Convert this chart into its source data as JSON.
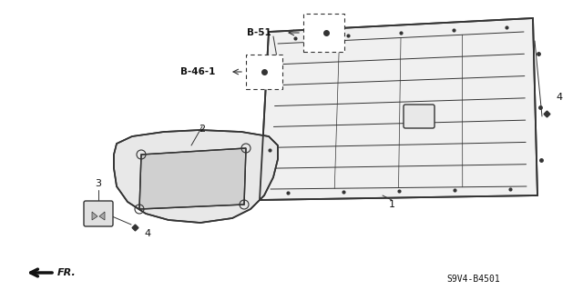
{
  "bg_color": "#ffffff",
  "line_color": "#333333",
  "text_color": "#111111",
  "labels": {
    "B51": "B-51",
    "B461": "B-46-1",
    "1": "1",
    "2": "2",
    "3": "3",
    "4a": "4",
    "4b": "4"
  },
  "diagram_code": "S9V4-B4501",
  "fr_label": "FR."
}
